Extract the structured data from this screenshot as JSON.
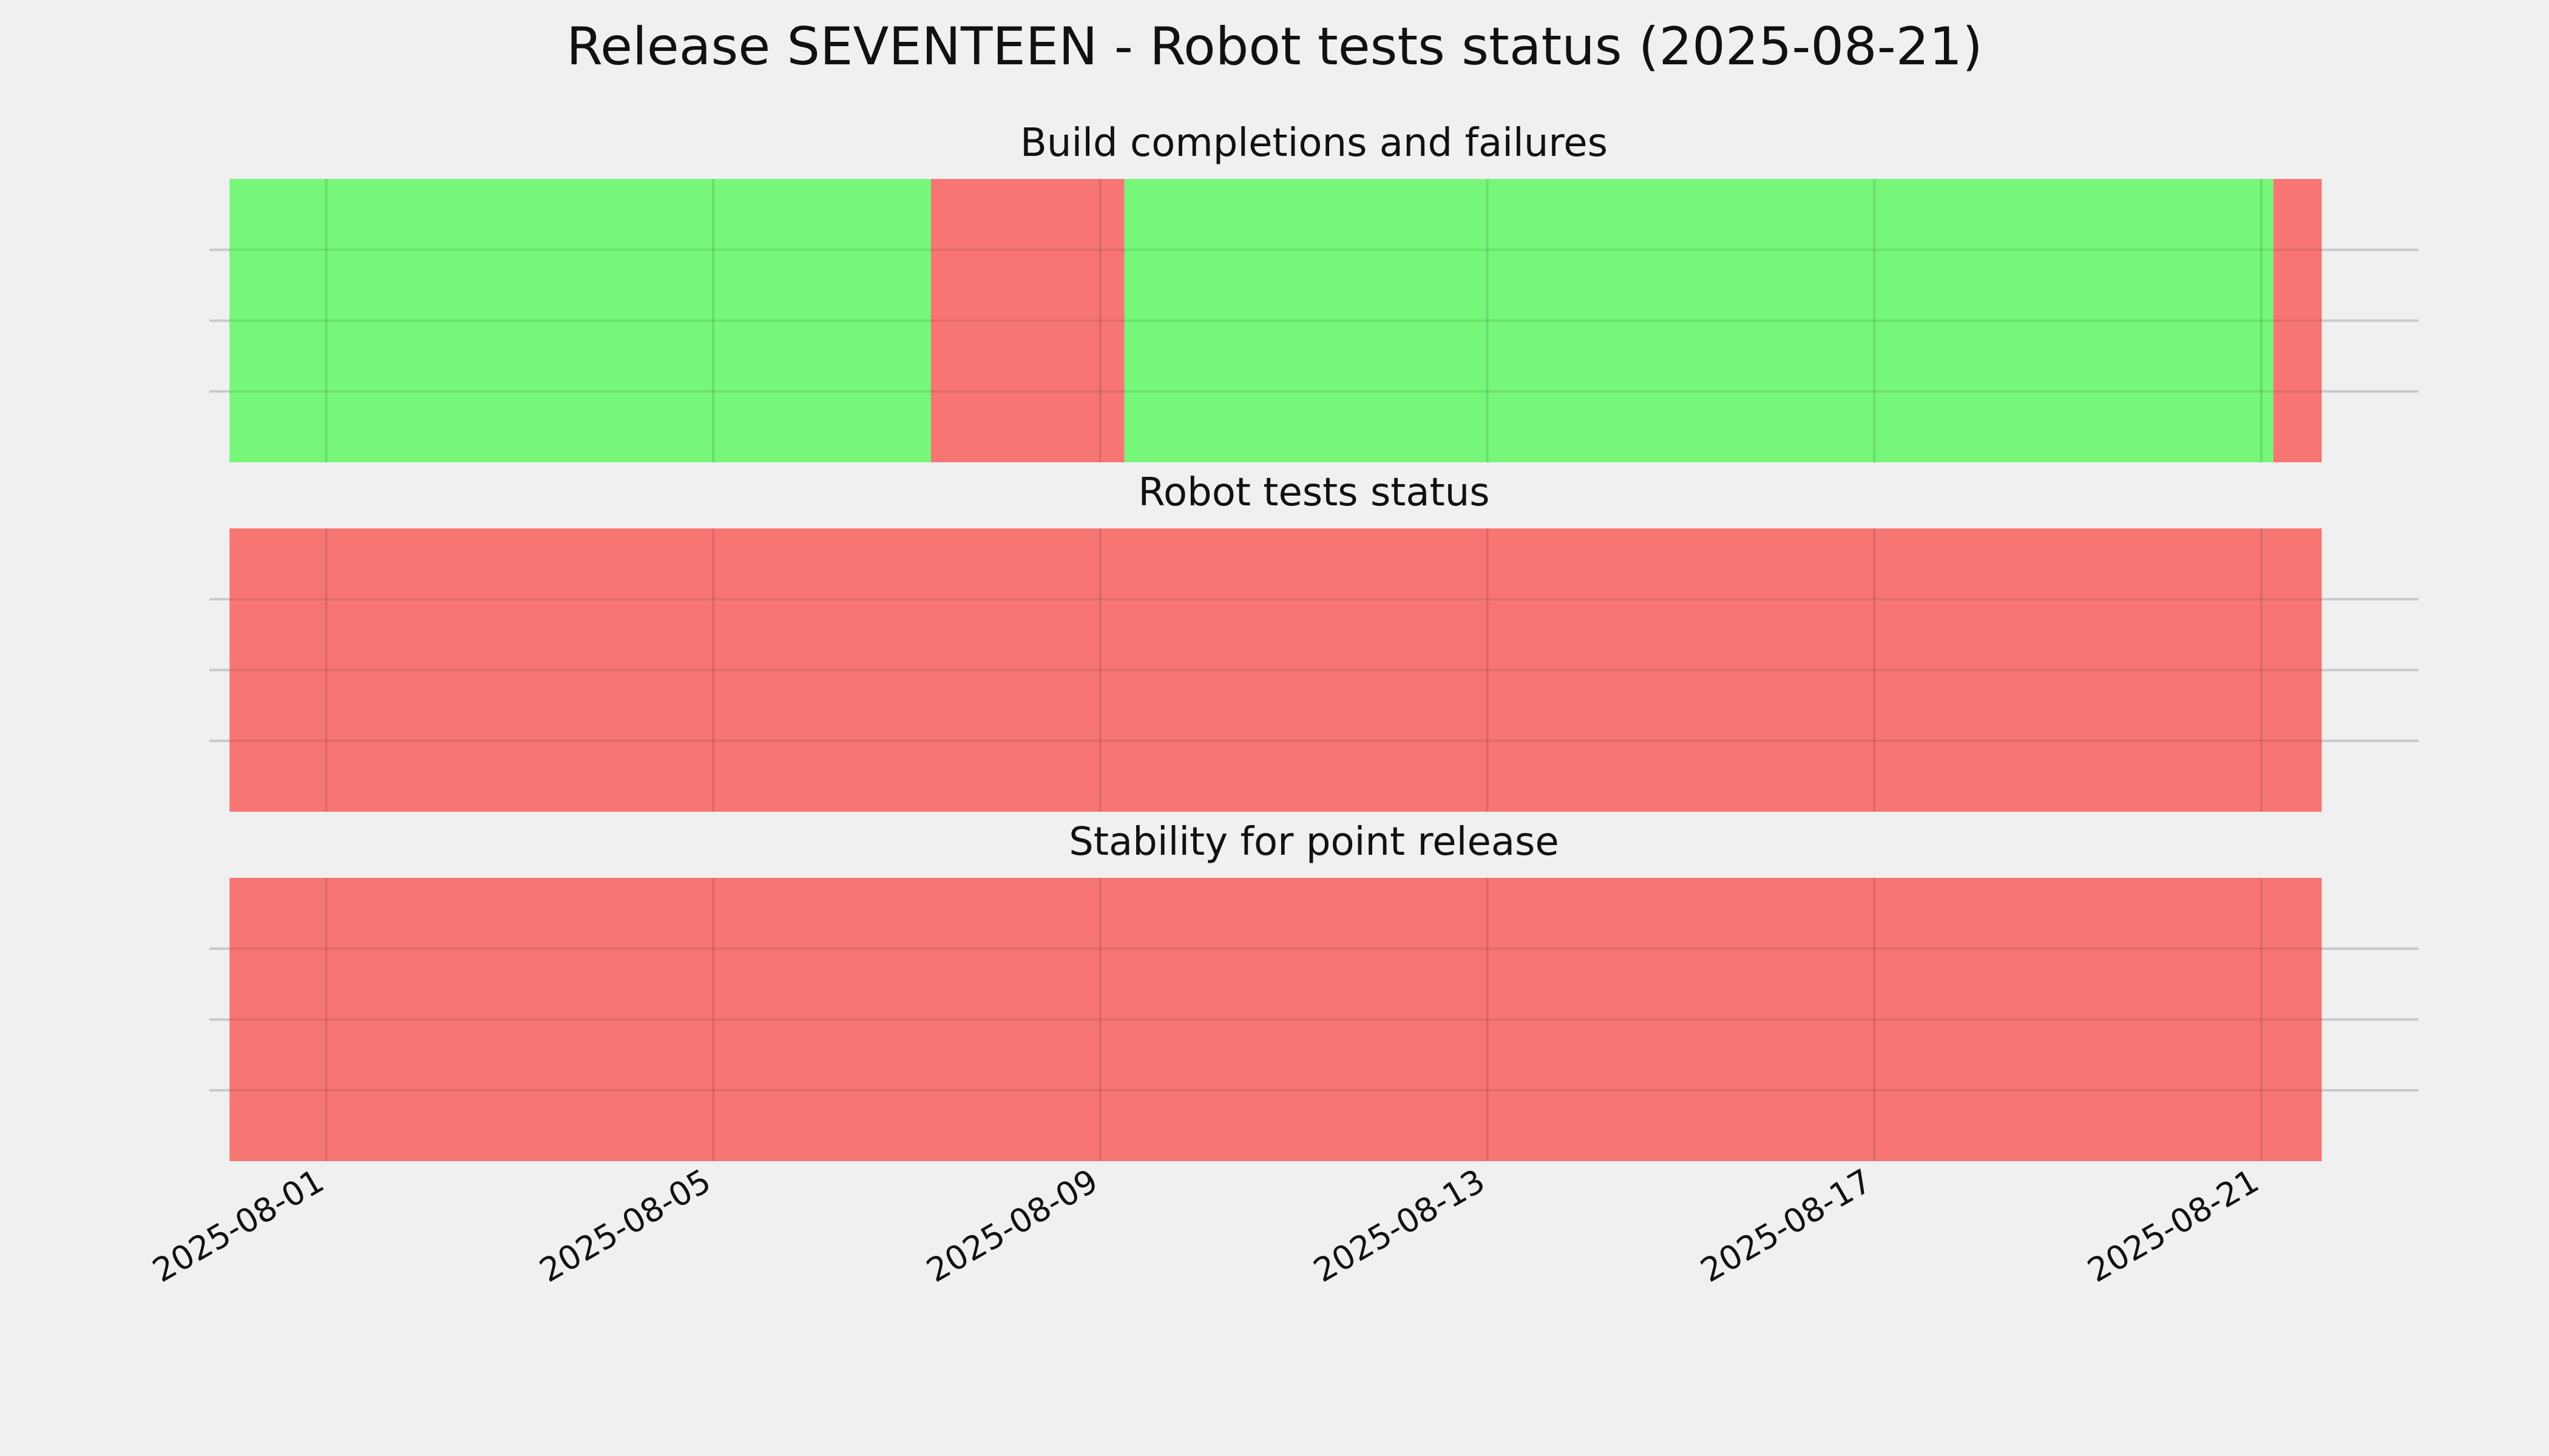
{
  "title": "Release SEVENTEEN - Robot tests status (2025-08-21)",
  "colors": {
    "background": "#f0f0f0",
    "pass": "#77f77a",
    "fail": "#f77674",
    "grid": "#c8c8c8"
  },
  "chart_data": {
    "type": "timeline",
    "x_range": [
      "2025-07-30 19:00",
      "2025-08-22 15:00"
    ],
    "x_ticks": [
      "2025-08-01",
      "2025-08-05",
      "2025-08-09",
      "2025-08-13",
      "2025-08-17",
      "2025-08-21"
    ],
    "grid": true,
    "panels": [
      {
        "title": "Build completions and failures",
        "segments": [
          {
            "start": "2025-07-31 00:00",
            "end": "2025-08-07 06:00",
            "status": "pass"
          },
          {
            "start": "2025-08-07 06:00",
            "end": "2025-08-09 06:00",
            "status": "fail"
          },
          {
            "start": "2025-08-09 06:00",
            "end": "2025-08-21 03:00",
            "status": "pass"
          },
          {
            "start": "2025-08-21 03:00",
            "end": "2025-08-21 15:00",
            "status": "fail"
          }
        ]
      },
      {
        "title": "Robot tests status",
        "segments": [
          {
            "start": "2025-07-31 00:00",
            "end": "2025-08-21 15:00",
            "status": "fail"
          }
        ]
      },
      {
        "title": "Stability for point release",
        "segments": [
          {
            "start": "2025-07-31 00:00",
            "end": "2025-08-21 15:00",
            "status": "fail"
          }
        ]
      }
    ]
  }
}
